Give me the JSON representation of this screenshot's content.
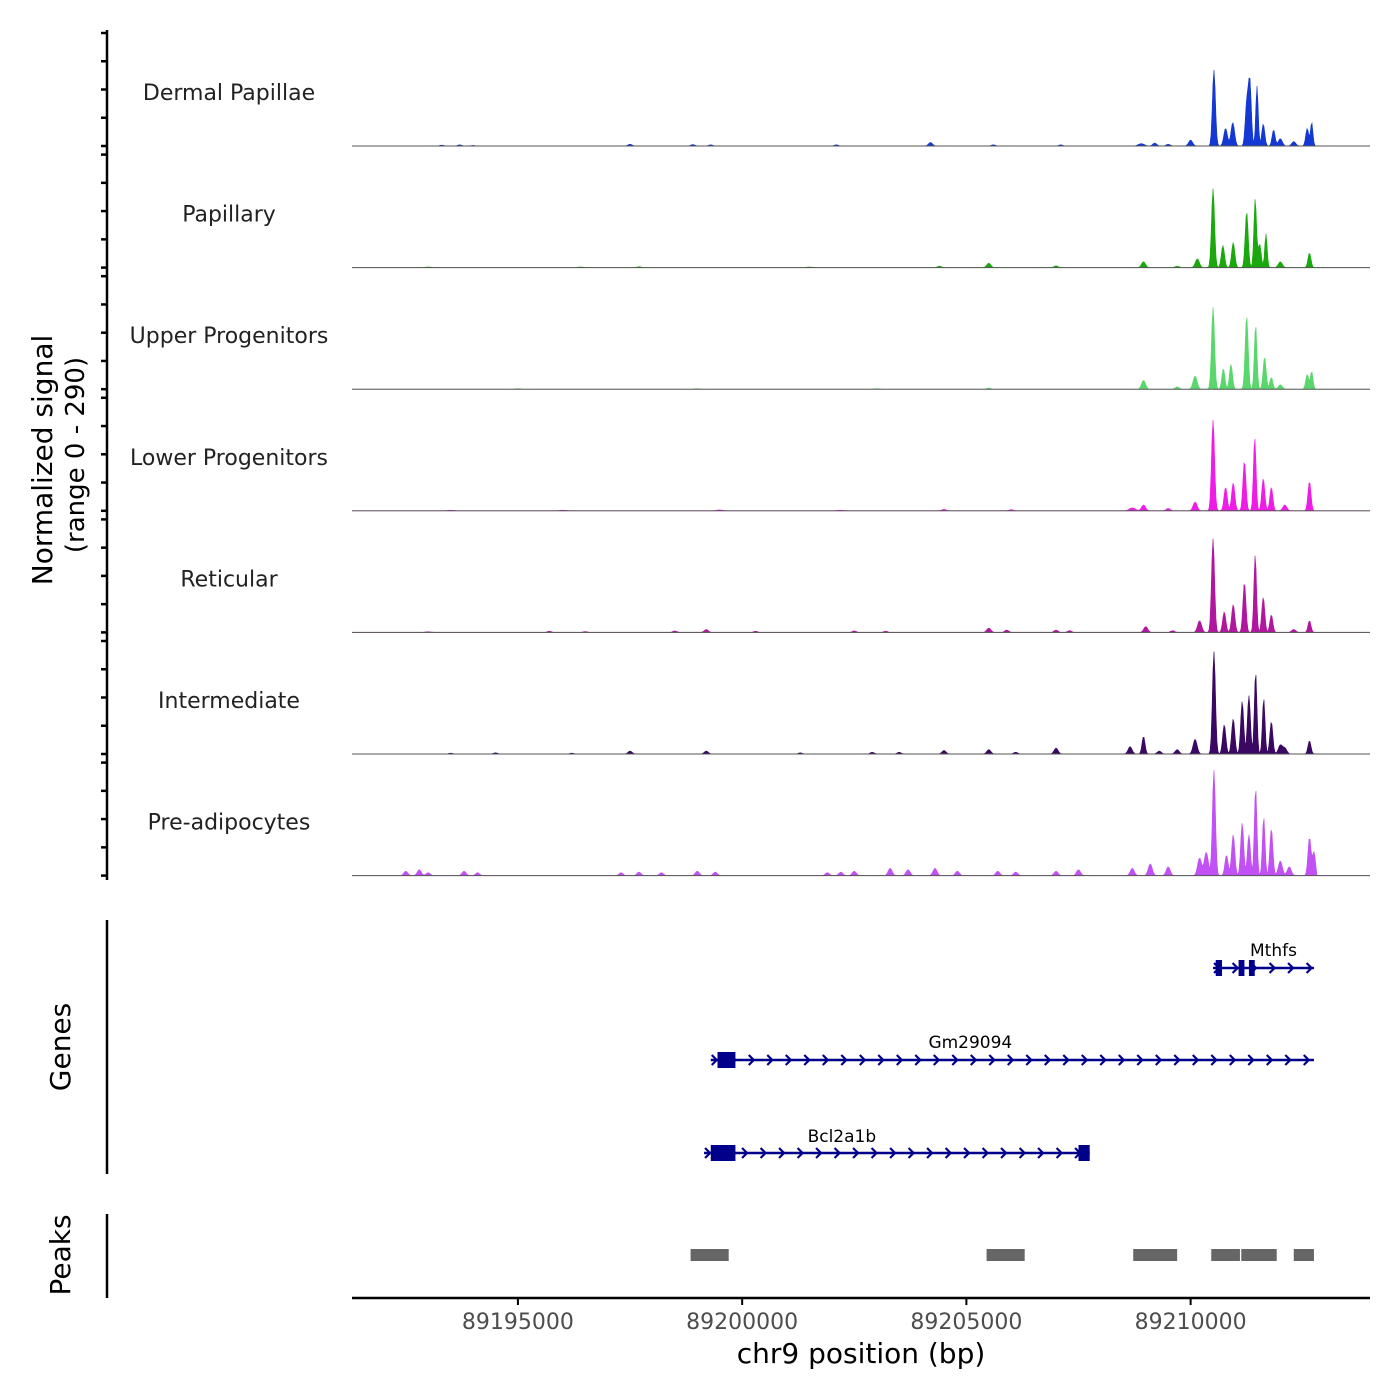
{
  "chart_data": {
    "type": "area",
    "title": "",
    "coverage": {
      "ylabel_line1": "Normalized signal",
      "ylabel_line2": "(range 0 - 290)",
      "ylim": [
        0,
        290
      ],
      "tracks": [
        {
          "name": "Dermal Papillae",
          "color": "#1338d4",
          "peaks": [
            [
              89193300,
              3,
              2
            ],
            [
              89193700,
              4,
              2
            ],
            [
              89194000,
              2,
              2
            ],
            [
              89197500,
              6,
              2
            ],
            [
              89198900,
              5,
              2
            ],
            [
              89199300,
              4,
              2
            ],
            [
              89202100,
              4,
              2
            ],
            [
              89204200,
              12,
              2
            ],
            [
              89205600,
              4,
              2
            ],
            [
              89207100,
              4,
              2
            ],
            [
              89208900,
              8,
              3
            ],
            [
              89209200,
              10,
              2
            ],
            [
              89209500,
              6,
              2
            ],
            [
              89210000,
              20,
              2
            ],
            [
              89210520,
              260,
              1.5
            ],
            [
              89210780,
              60,
              1.8
            ],
            [
              89210940,
              80,
              1.8
            ],
            [
              89211250,
              140,
              1.5
            ],
            [
              89211320,
              220,
              1.5
            ],
            [
              89211480,
              205,
              1.2
            ],
            [
              89211620,
              75,
              1.5
            ],
            [
              89211850,
              55,
              1.5
            ],
            [
              89212000,
              25,
              2
            ],
            [
              89212300,
              15,
              2
            ],
            [
              89212600,
              60,
              1.5
            ],
            [
              89212700,
              80,
              1.2
            ]
          ]
        },
        {
          "name": "Papillary",
          "color": "#1aa80e",
          "peaks": [
            [
              89193000,
              2,
              3
            ],
            [
              89196400,
              2,
              3
            ],
            [
              89197700,
              3,
              2
            ],
            [
              89201500,
              2,
              3
            ],
            [
              89204400,
              5,
              2
            ],
            [
              89205500,
              15,
              2
            ],
            [
              89207000,
              6,
              2
            ],
            [
              89208950,
              20,
              2
            ],
            [
              89209700,
              5,
              2
            ],
            [
              89210150,
              30,
              2
            ],
            [
              89210500,
              270,
              1.5
            ],
            [
              89210720,
              75,
              1.6
            ],
            [
              89210950,
              85,
              1.6
            ],
            [
              89211250,
              190,
              1.5
            ],
            [
              89211440,
              235,
              1.3
            ],
            [
              89211540,
              80,
              1.5
            ],
            [
              89211680,
              115,
              1.2
            ],
            [
              89212000,
              20,
              2
            ],
            [
              89212650,
              50,
              1.5
            ]
          ]
        },
        {
          "name": "Upper Progenitors",
          "color": "#5ad76c",
          "peaks": [
            [
              89195000,
              2,
              3
            ],
            [
              89199000,
              2,
              3
            ],
            [
              89203000,
              2,
              3
            ],
            [
              89205500,
              4,
              2
            ],
            [
              89208950,
              30,
              2
            ],
            [
              89209700,
              8,
              2
            ],
            [
              89210100,
              45,
              2
            ],
            [
              89210500,
              280,
              1.5
            ],
            [
              89210730,
              70,
              1.5
            ],
            [
              89210900,
              85,
              1.5
            ],
            [
              89211250,
              250,
              1.5
            ],
            [
              89211450,
              220,
              1.3
            ],
            [
              89211650,
              110,
              1.5
            ],
            [
              89211800,
              40,
              1.5
            ],
            [
              89212000,
              15,
              2
            ],
            [
              89212600,
              50,
              1.5
            ],
            [
              89212700,
              60,
              1.3
            ]
          ]
        },
        {
          "name": "Lower Progenitors",
          "color": "#ee1ce6",
          "peaks": [
            [
              89193500,
              2,
              3
            ],
            [
              89196000,
              2,
              3
            ],
            [
              89199500,
              3,
              3
            ],
            [
              89202200,
              2,
              3
            ],
            [
              89204500,
              5,
              2
            ],
            [
              89206000,
              4,
              2
            ],
            [
              89208700,
              10,
              3
            ],
            [
              89208950,
              20,
              2
            ],
            [
              89209500,
              8,
              2
            ],
            [
              89210100,
              30,
              2
            ],
            [
              89210500,
              310,
              1.5
            ],
            [
              89210780,
              80,
              1.6
            ],
            [
              89210950,
              95,
              1.6
            ],
            [
              89211200,
              170,
              1.5
            ],
            [
              89211430,
              250,
              1.3
            ],
            [
              89211620,
              110,
              1.5
            ],
            [
              89211800,
              80,
              1.5
            ],
            [
              89212100,
              20,
              2
            ],
            [
              89212650,
              100,
              1.5
            ]
          ]
        },
        {
          "name": "Reticular",
          "color": "#b1179e",
          "peaks": [
            [
              89193000,
              2,
              3
            ],
            [
              89195700,
              4,
              2
            ],
            [
              89196500,
              3,
              2
            ],
            [
              89198500,
              5,
              2
            ],
            [
              89199200,
              10,
              2
            ],
            [
              89200300,
              4,
              2
            ],
            [
              89202500,
              5,
              2
            ],
            [
              89203200,
              4,
              2
            ],
            [
              89205500,
              15,
              2
            ],
            [
              89205900,
              8,
              2
            ],
            [
              89207000,
              8,
              2
            ],
            [
              89207300,
              6,
              2
            ],
            [
              89209000,
              20,
              2
            ],
            [
              89209600,
              6,
              2
            ],
            [
              89210200,
              40,
              2
            ],
            [
              89210500,
              320,
              1.5
            ],
            [
              89210750,
              70,
              1.6
            ],
            [
              89210950,
              95,
              1.6
            ],
            [
              89211200,
              170,
              1.5
            ],
            [
              89211440,
              265,
              1.3
            ],
            [
              89211620,
              120,
              1.5
            ],
            [
              89211800,
              60,
              1.5
            ],
            [
              89212300,
              10,
              2
            ],
            [
              89212650,
              40,
              1.5
            ]
          ]
        },
        {
          "name": "Intermediate",
          "color": "#3a0862",
          "peaks": [
            [
              89193500,
              3,
              2
            ],
            [
              89194500,
              4,
              2
            ],
            [
              89196200,
              3,
              2
            ],
            [
              89197500,
              10,
              2
            ],
            [
              89199200,
              10,
              2
            ],
            [
              89201300,
              4,
              2
            ],
            [
              89202900,
              6,
              2
            ],
            [
              89203500,
              6,
              2
            ],
            [
              89204500,
              12,
              2
            ],
            [
              89205500,
              15,
              2
            ],
            [
              89206100,
              6,
              2
            ],
            [
              89207000,
              20,
              2
            ],
            [
              89208650,
              25,
              2
            ],
            [
              89208950,
              60,
              1.5
            ],
            [
              89209300,
              10,
              2
            ],
            [
              89209700,
              15,
              2
            ],
            [
              89210100,
              50,
              2
            ],
            [
              89210520,
              350,
              1.5
            ],
            [
              89210750,
              100,
              1.6
            ],
            [
              89210950,
              120,
              1.6
            ],
            [
              89211150,
              180,
              1.5
            ],
            [
              89211300,
              200,
              1.5
            ],
            [
              89211450,
              280,
              1.3
            ],
            [
              89211630,
              190,
              1.3
            ],
            [
              89211800,
              110,
              1.5
            ],
            [
              89212000,
              30,
              2
            ],
            [
              89212100,
              20,
              2
            ],
            [
              89212650,
              45,
              1.5
            ]
          ]
        },
        {
          "name": "Pre-adipocytes",
          "color": "#c150f5",
          "peaks": [
            [
              89192500,
              15,
              2
            ],
            [
              89192800,
              20,
              2
            ],
            [
              89193000,
              10,
              2
            ],
            [
              89193800,
              15,
              2
            ],
            [
              89194100,
              10,
              2
            ],
            [
              89197300,
              10,
              2
            ],
            [
              89197700,
              12,
              2
            ],
            [
              89198200,
              10,
              2
            ],
            [
              89199000,
              15,
              2
            ],
            [
              89199400,
              12,
              2
            ],
            [
              89201900,
              10,
              2
            ],
            [
              89202200,
              12,
              2
            ],
            [
              89202500,
              15,
              2
            ],
            [
              89203300,
              25,
              2
            ],
            [
              89203700,
              20,
              2
            ],
            [
              89204300,
              25,
              2
            ],
            [
              89204800,
              15,
              2
            ],
            [
              89205700,
              15,
              2
            ],
            [
              89206100,
              12,
              2
            ],
            [
              89207000,
              15,
              2
            ],
            [
              89207500,
              20,
              2
            ],
            [
              89208700,
              25,
              2
            ],
            [
              89209100,
              40,
              2
            ],
            [
              89209500,
              30,
              2
            ],
            [
              89210200,
              60,
              2
            ],
            [
              89210350,
              80,
              2
            ],
            [
              89210520,
              360,
              1.5
            ],
            [
              89210800,
              70,
              1.6
            ],
            [
              89210950,
              140,
              1.6
            ],
            [
              89211150,
              180,
              1.5
            ],
            [
              89211300,
              140,
              1.5
            ],
            [
              89211450,
              300,
              1.3
            ],
            [
              89211630,
              200,
              1.3
            ],
            [
              89211800,
              160,
              1.5
            ],
            [
              89212000,
              50,
              2
            ],
            [
              89212200,
              30,
              2
            ],
            [
              89212650,
              130,
              1.5
            ],
            [
              89212750,
              80,
              1.5
            ]
          ]
        }
      ]
    },
    "genes": {
      "label": "Genes",
      "color": "#00008b",
      "items": [
        {
          "name": "Mthfs",
          "start": 89210500,
          "end": 89212750,
          "exons": [
            [
              89210560,
              89210700
            ],
            [
              89211070,
              89211200
            ],
            [
              89211300,
              89211430
            ]
          ]
        },
        {
          "name": "Gm29094",
          "start": 89199300,
          "end": 89212750,
          "exons": [
            [
              89199450,
              89199850
            ]
          ]
        },
        {
          "name": "Bcl2a1b",
          "start": 89199150,
          "end": 89207750,
          "exons": [
            [
              89199300,
              89199850
            ],
            [
              89207500,
              89207750
            ]
          ]
        }
      ]
    },
    "peaks": {
      "label": "Peaks",
      "color": "#666666",
      "regions": [
        [
          89198850,
          89199700
        ],
        [
          89205450,
          89206300
        ],
        [
          89208720,
          89209700
        ],
        [
          89210460,
          89211100
        ],
        [
          89211130,
          89211920
        ],
        [
          89212300,
          89212750
        ]
      ]
    },
    "x_axis": {
      "xlabel": "chr9 position (bp)",
      "xlim": [
        89191300,
        89214000
      ],
      "ticks": [
        89195000,
        89200000,
        89205000,
        89210000
      ],
      "tick_labels": [
        "89195000",
        "89200000",
        "89205000",
        "89210000"
      ]
    }
  }
}
